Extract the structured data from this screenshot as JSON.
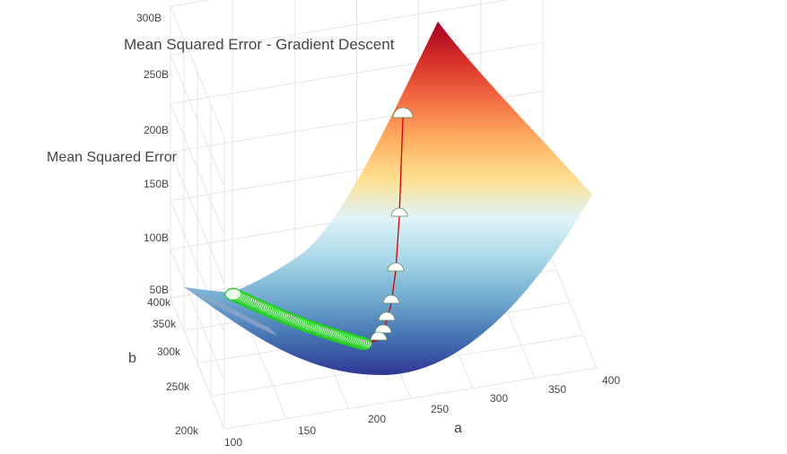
{
  "chart_data": {
    "type": "surface",
    "title": "Mean Squared Error - Gradient Descent",
    "zlabel": "Mean Squared Error",
    "xlabel": "a",
    "ylabel": "b",
    "x_ticks": [
      "100",
      "150",
      "200",
      "250",
      "300",
      "350",
      "400"
    ],
    "y_ticks": [
      "200k",
      "250k",
      "300k",
      "350k",
      "400k"
    ],
    "z_ticks": [
      "50B",
      "100B",
      "150B",
      "200B",
      "250B",
      "300B"
    ],
    "xlim": [
      100,
      400
    ],
    "ylim": [
      200000,
      400000
    ],
    "zlim": [
      0,
      300000000000
    ],
    "colorscale": [
      "#313695",
      "#4575b4",
      "#74add1",
      "#abd9e9",
      "#e0f3f8",
      "#fee090",
      "#fdae61",
      "#f46d43",
      "#d73027",
      "#a50026"
    ],
    "descent_path_color": "#cc0000",
    "descent_marker_color": "#22cc22",
    "grid": true,
    "surface_corner_values": [
      {
        "a": 100,
        "b": 200000,
        "mse": 0
      },
      {
        "a": 400,
        "b": 200000,
        "mse": 110000000000
      },
      {
        "a": 400,
        "b": 400000,
        "mse": 310000000000
      },
      {
        "a": 100,
        "b": 400000,
        "mse": 45000000000
      }
    ],
    "descent_path": [
      {
        "a": 285,
        "b": 370000,
        "mse": 208000000000
      },
      {
        "a": 282,
        "b": 340000,
        "mse": 122000000000
      },
      {
        "a": 280,
        "b": 315000,
        "mse": 68000000000
      },
      {
        "a": 278,
        "b": 295000,
        "mse": 38000000000
      },
      {
        "a": 275,
        "b": 280000,
        "mse": 22000000000
      },
      {
        "a": 272,
        "b": 272000,
        "mse": 13000000000
      },
      {
        "a": 266,
        "b": 268000,
        "mse": 8000000000
      },
      {
        "a": 240,
        "b": 276000,
        "mse": 7000000000
      },
      {
        "a": 210,
        "b": 290000,
        "mse": 8000000000
      },
      {
        "a": 180,
        "b": 305000,
        "mse": 10000000000
      },
      {
        "a": 150,
        "b": 320000,
        "mse": 12000000000
      },
      {
        "a": 120,
        "b": 335000,
        "mse": 14000000000
      }
    ]
  }
}
